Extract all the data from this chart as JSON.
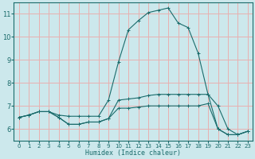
{
  "xlabel": "Humidex (Indice chaleur)",
  "bg_color": "#cce8ec",
  "grid_color": "#e8b0b0",
  "line_color": "#1a6b6b",
  "xlim": [
    -0.5,
    23.5
  ],
  "ylim": [
    5.5,
    11.5
  ],
  "xticks": [
    0,
    1,
    2,
    3,
    4,
    5,
    6,
    7,
    8,
    9,
    10,
    11,
    12,
    13,
    14,
    15,
    16,
    17,
    18,
    19,
    20,
    21,
    22,
    23
  ],
  "yticks": [
    6,
    7,
    8,
    9,
    10,
    11
  ],
  "line1_x": [
    0,
    1,
    2,
    3,
    4,
    5,
    6,
    7,
    8,
    9,
    10,
    11,
    12,
    13,
    14,
    15,
    16,
    17,
    18,
    19,
    20,
    21,
    22,
    23
  ],
  "line1_y": [
    6.5,
    6.6,
    6.75,
    6.75,
    6.6,
    6.55,
    6.55,
    6.55,
    6.55,
    7.25,
    8.9,
    10.3,
    10.7,
    11.05,
    11.15,
    11.25,
    10.6,
    10.4,
    9.3,
    7.5,
    7.0,
    6.0,
    5.75,
    5.9
  ],
  "line2_x": [
    0,
    1,
    2,
    3,
    4,
    5,
    6,
    7,
    8,
    9,
    10,
    11,
    12,
    13,
    14,
    15,
    16,
    17,
    18,
    19,
    20,
    21,
    22,
    23
  ],
  "line2_y": [
    6.5,
    6.6,
    6.75,
    6.75,
    6.5,
    6.2,
    6.2,
    6.3,
    6.3,
    6.45,
    7.25,
    7.3,
    7.35,
    7.45,
    7.5,
    7.5,
    7.5,
    7.5,
    7.5,
    7.5,
    6.0,
    5.75,
    5.75,
    5.9
  ],
  "line3_x": [
    0,
    1,
    2,
    3,
    4,
    5,
    6,
    7,
    8,
    9,
    10,
    11,
    12,
    13,
    14,
    15,
    16,
    17,
    18,
    19,
    20,
    21,
    22,
    23
  ],
  "line3_y": [
    6.5,
    6.6,
    6.75,
    6.75,
    6.5,
    6.2,
    6.2,
    6.3,
    6.3,
    6.45,
    6.9,
    6.9,
    6.95,
    7.0,
    7.0,
    7.0,
    7.0,
    7.0,
    7.0,
    7.1,
    6.0,
    5.75,
    5.75,
    5.9
  ]
}
